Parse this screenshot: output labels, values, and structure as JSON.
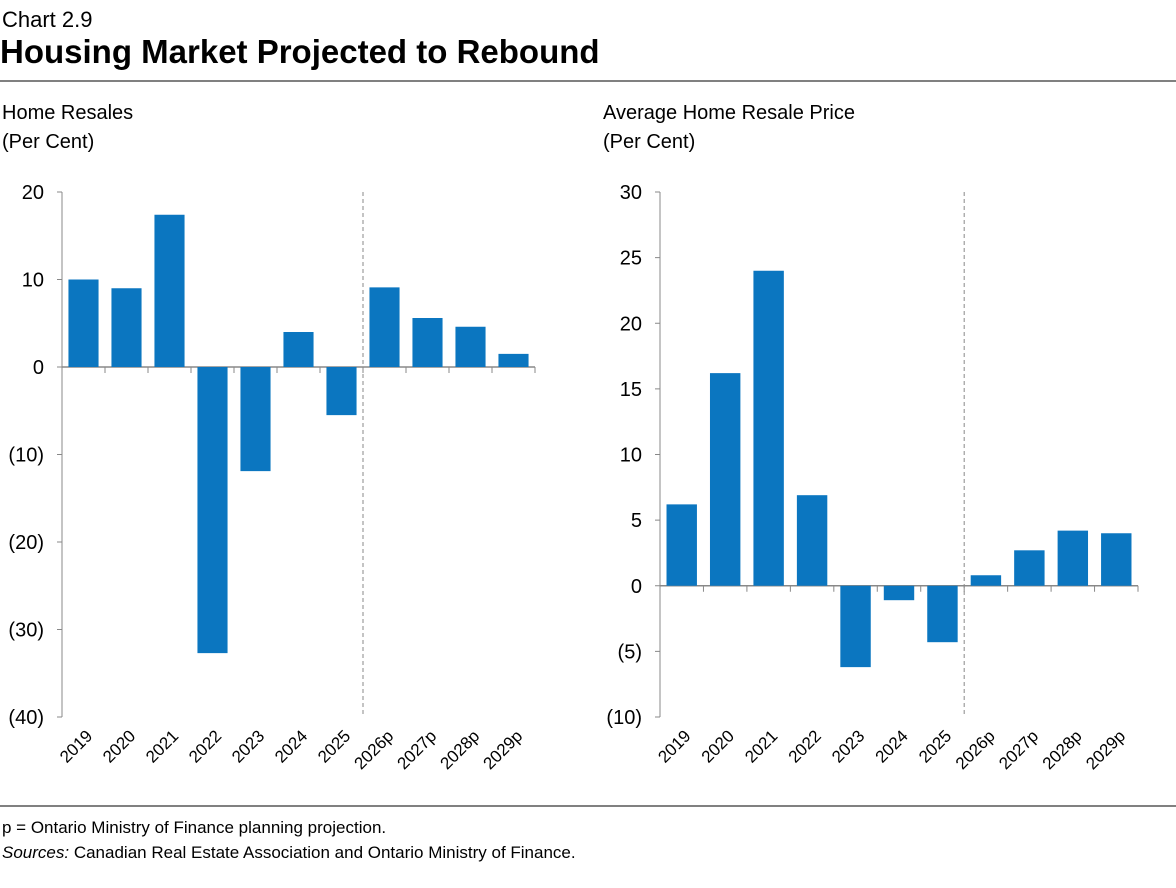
{
  "header": {
    "chart_number": "Chart 2.9",
    "title": "Housing Market Projected to Rebound"
  },
  "chart_data": [
    {
      "type": "bar",
      "title": "Home Resales",
      "ylabel": "(Per Cent)",
      "color": "#0b76c0",
      "categories": [
        "2019",
        "2020",
        "2021",
        "2022",
        "2023",
        "2024",
        "2025",
        "2026p",
        "2027p",
        "2028p",
        "2029p"
      ],
      "values": [
        10.0,
        9.0,
        17.4,
        -32.7,
        -11.9,
        4.0,
        -5.5,
        9.1,
        5.6,
        4.6,
        1.5
      ],
      "ylim": [
        -40,
        20
      ],
      "yticks": [
        {
          "value": -40,
          "label": "(40)"
        },
        {
          "value": -30,
          "label": "(30)"
        },
        {
          "value": -20,
          "label": "(20)"
        },
        {
          "value": -10,
          "label": "(10)"
        },
        0,
        10,
        20
      ]
    },
    {
      "type": "bar",
      "title": "Average Home Resale Price",
      "ylabel": "(Per Cent)",
      "color": "#0b76c0",
      "categories": [
        "2019",
        "2020",
        "2021",
        "2022",
        "2023",
        "2024",
        "2025",
        "2026p",
        "2027p",
        "2028p",
        "2029p"
      ],
      "values": [
        6.2,
        16.2,
        24.0,
        6.9,
        -6.2,
        -1.1,
        -4.3,
        0.8,
        2.7,
        4.2,
        4.0
      ],
      "ylim": [
        -10,
        30
      ],
      "yticks": [
        {
          "value": -10,
          "label": "(10)"
        },
        {
          "value": -5,
          "label": "(5)"
        },
        0,
        5,
        10,
        15,
        20,
        25,
        30
      ]
    }
  ],
  "footer": {
    "note": "p = Ontario Ministry of Finance planning projection.",
    "sources_label": "Sources:",
    "sources_text": "Canadian Real Estate Association and Ontario Ministry of Finance."
  }
}
